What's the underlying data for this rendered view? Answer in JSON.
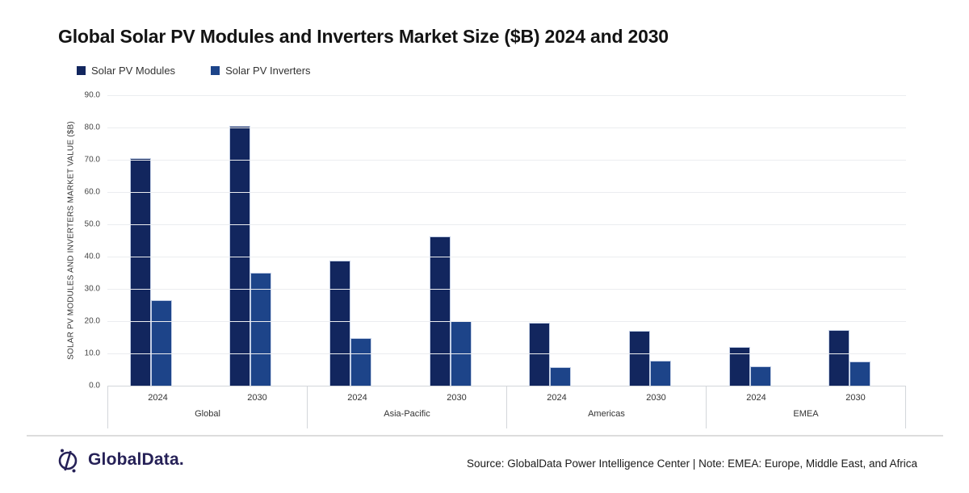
{
  "title": "Global Solar PV Modules and Inverters Market Size ($B) 2024 and 2030",
  "chart_data": {
    "type": "bar",
    "title": "Global Solar PV Modules and Inverters Market Size ($B) 2024 and 2030",
    "xlabel": "",
    "ylabel": "SOLAR PV MODULES AND INVERTERS MARKET VALUE ($B)",
    "ylim": [
      0,
      90
    ],
    "ytick_step": 10,
    "ytick_labels": [
      "0.0",
      "10.0",
      "20.0",
      "30.0",
      "40.0",
      "50.0",
      "60.0",
      "70.0",
      "80.0",
      "90.0"
    ],
    "grid": true,
    "legend_position": "top-left",
    "groups": [
      "Global",
      "Asia-Pacific",
      "Americas",
      "EMEA"
    ],
    "categories_per_group": [
      "2024",
      "2030"
    ],
    "series": [
      {
        "name": "Solar PV Modules",
        "color": "#12265e",
        "values": [
          [
            70.4,
            80.6
          ],
          [
            38.7,
            46.2
          ],
          [
            19.6,
            17.1
          ],
          [
            12.1,
            17.2
          ]
        ]
      },
      {
        "name": "Solar PV Inverters",
        "color": "#1d4489",
        "values": [
          [
            26.5,
            35.0
          ],
          [
            14.7,
            19.9
          ],
          [
            5.7,
            7.7
          ],
          [
            6.0,
            7.6
          ]
        ]
      }
    ]
  },
  "footer": {
    "brand": "GlobalData.",
    "brand_color": "#262157",
    "source": "Source: GlobalData Power Intelligence Center | Note: EMEA: Europe, Middle East, and Africa"
  }
}
